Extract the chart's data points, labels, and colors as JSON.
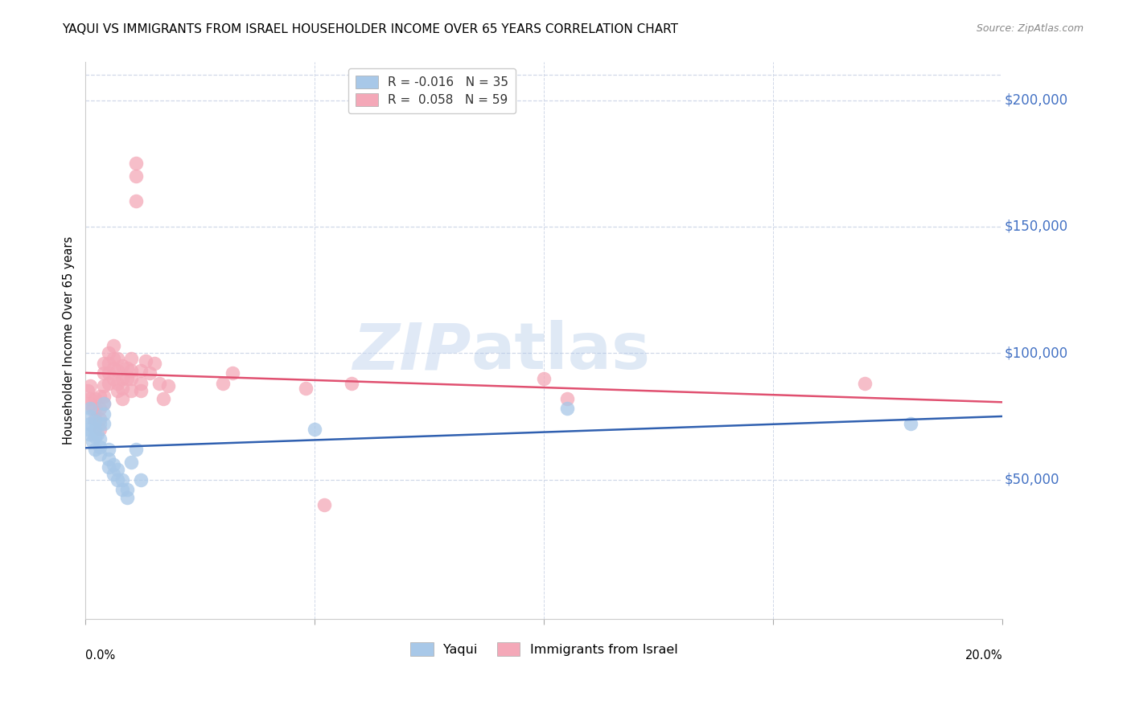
{
  "title": "YAQUI VS IMMIGRANTS FROM ISRAEL HOUSEHOLDER INCOME OVER 65 YEARS CORRELATION CHART",
  "source": "Source: ZipAtlas.com",
  "ylabel": "Householder Income Over 65 years",
  "watermark_zip": "ZIP",
  "watermark_atlas": "atlas",
  "legend_yaqui_R": "-0.016",
  "legend_yaqui_N": "35",
  "legend_israel_R": "0.058",
  "legend_israel_N": "59",
  "yaqui_color": "#a8c8e8",
  "israel_color": "#f4a8b8",
  "yaqui_line_color": "#3060b0",
  "israel_line_color": "#e05070",
  "right_label_color": "#4472c4",
  "xlim": [
    0.0,
    0.2
  ],
  "ylim": [
    -5000,
    215000
  ],
  "yticks": [
    50000,
    100000,
    150000,
    200000
  ],
  "ytick_labels": [
    "$50,000",
    "$100,000",
    "$150,000",
    "$200,000"
  ],
  "yaqui_x": [
    0.0005,
    0.0008,
    0.001,
    0.001,
    0.001,
    0.0015,
    0.002,
    0.002,
    0.002,
    0.002,
    0.0025,
    0.003,
    0.003,
    0.003,
    0.003,
    0.004,
    0.004,
    0.004,
    0.005,
    0.005,
    0.005,
    0.006,
    0.006,
    0.007,
    0.007,
    0.008,
    0.008,
    0.009,
    0.009,
    0.01,
    0.011,
    0.012,
    0.05,
    0.105,
    0.18
  ],
  "yaqui_y": [
    70000,
    68000,
    72000,
    75000,
    78000,
    65000,
    62000,
    67000,
    70000,
    73000,
    68000,
    60000,
    63000,
    66000,
    72000,
    72000,
    76000,
    80000,
    55000,
    58000,
    62000,
    52000,
    56000,
    50000,
    54000,
    46000,
    50000,
    43000,
    46000,
    57000,
    62000,
    50000,
    70000,
    78000,
    72000
  ],
  "israel_x": [
    0.0005,
    0.001,
    0.001,
    0.001,
    0.0015,
    0.002,
    0.002,
    0.002,
    0.003,
    0.003,
    0.003,
    0.003,
    0.004,
    0.004,
    0.004,
    0.004,
    0.004,
    0.005,
    0.005,
    0.005,
    0.005,
    0.006,
    0.006,
    0.006,
    0.006,
    0.007,
    0.007,
    0.007,
    0.007,
    0.008,
    0.008,
    0.008,
    0.008,
    0.009,
    0.009,
    0.01,
    0.01,
    0.01,
    0.01,
    0.011,
    0.011,
    0.011,
    0.012,
    0.012,
    0.012,
    0.013,
    0.014,
    0.015,
    0.016,
    0.017,
    0.018,
    0.03,
    0.032,
    0.048,
    0.052,
    0.058,
    0.1,
    0.105,
    0.17
  ],
  "israel_y": [
    85000,
    80000,
    82000,
    87000,
    78000,
    74000,
    78000,
    82000,
    70000,
    74000,
    78000,
    83000,
    80000,
    83000,
    87000,
    92000,
    96000,
    88000,
    92000,
    96000,
    100000,
    90000,
    94000,
    98000,
    103000,
    85000,
    88000,
    93000,
    98000,
    82000,
    86000,
    90000,
    95000,
    90000,
    94000,
    85000,
    90000,
    93000,
    98000,
    160000,
    170000,
    175000,
    85000,
    88000,
    93000,
    97000,
    92000,
    96000,
    88000,
    82000,
    87000,
    88000,
    92000,
    86000,
    40000,
    88000,
    90000,
    82000,
    88000
  ],
  "background_color": "#ffffff",
  "grid_color": "#d0d8e8",
  "plot_bg_color": "#ffffff",
  "grid_linestyle": "--"
}
